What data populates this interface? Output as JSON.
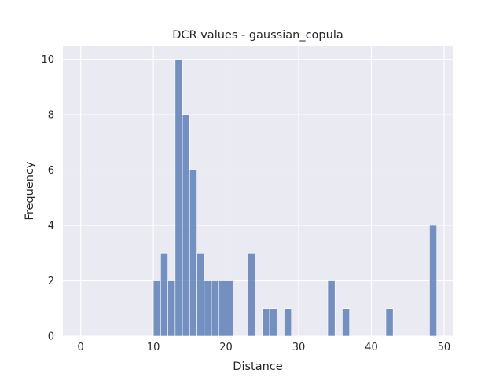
{
  "chart_data": {
    "type": "bar",
    "title": "DCR values - gaussian_copula",
    "xlabel": "Distance",
    "ylabel": "Frequency",
    "xlim": [
      -2.45,
      51.2
    ],
    "ylim": [
      0,
      10.5
    ],
    "x_ticks": [
      0,
      10,
      20,
      30,
      40,
      50
    ],
    "y_ticks": [
      0,
      2,
      4,
      6,
      8,
      10
    ],
    "bin_width": 1.0,
    "bins": [
      {
        "x0": 10.0,
        "x1": 11.0,
        "count": 2
      },
      {
        "x0": 11.0,
        "x1": 12.0,
        "count": 3
      },
      {
        "x0": 12.0,
        "x1": 13.0,
        "count": 2
      },
      {
        "x0": 13.0,
        "x1": 14.0,
        "count": 10
      },
      {
        "x0": 14.0,
        "x1": 15.0,
        "count": 8
      },
      {
        "x0": 15.0,
        "x1": 16.0,
        "count": 6
      },
      {
        "x0": 16.0,
        "x1": 17.0,
        "count": 3
      },
      {
        "x0": 17.0,
        "x1": 18.0,
        "count": 2
      },
      {
        "x0": 18.0,
        "x1": 19.0,
        "count": 2
      },
      {
        "x0": 19.0,
        "x1": 20.0,
        "count": 2
      },
      {
        "x0": 20.0,
        "x1": 21.0,
        "count": 2
      },
      {
        "x0": 23.0,
        "x1": 24.0,
        "count": 3
      },
      {
        "x0": 25.0,
        "x1": 26.0,
        "count": 1
      },
      {
        "x0": 26.0,
        "x1": 27.0,
        "count": 1
      },
      {
        "x0": 28.0,
        "x1": 29.0,
        "count": 1
      },
      {
        "x0": 34.0,
        "x1": 35.0,
        "count": 2
      },
      {
        "x0": 36.0,
        "x1": 37.0,
        "count": 1
      },
      {
        "x0": 42.0,
        "x1": 43.0,
        "count": 1
      },
      {
        "x0": 48.0,
        "x1": 49.0,
        "count": 4
      }
    ],
    "grid": true,
    "colors": {
      "bar": "#4c72b0",
      "background": "#eaeaf2",
      "grid": "#ffffff"
    }
  }
}
